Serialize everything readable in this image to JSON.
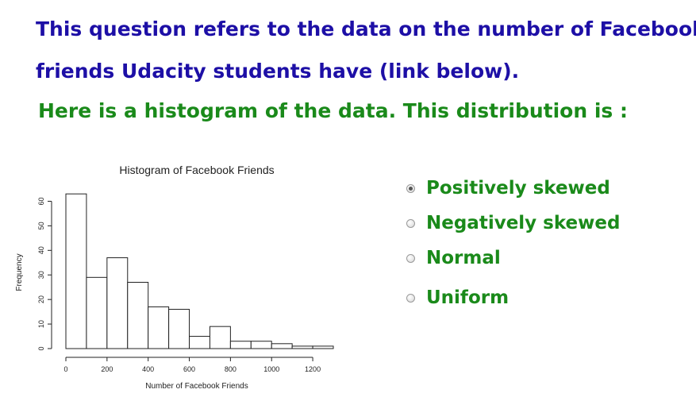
{
  "question": {
    "line1": "This question refers to the data on the number of Facebook",
    "line2": "friends Udacity students have (link below).",
    "line3": "Here is a histogram of the data. This distribution is :"
  },
  "options": [
    {
      "label": "Positively skewed",
      "selected": true
    },
    {
      "label": "Negatively skewed",
      "selected": false
    },
    {
      "label": "Normal",
      "selected": false
    },
    {
      "label": "Uniform",
      "selected": false
    }
  ],
  "colors": {
    "question_text": "#1d0fa6",
    "instruction_text": "#1a8a1a",
    "option_text": "#1a8a1a"
  },
  "chart_data": {
    "type": "bar",
    "title": "Histogram of Facebook Friends",
    "xlabel": "Number of Facebook Friends",
    "ylabel": "Frequency",
    "bin_edges": [
      0,
      100,
      200,
      300,
      400,
      500,
      600,
      700,
      800,
      900,
      1000,
      1100,
      1200,
      1300
    ],
    "values": [
      63,
      29,
      37,
      27,
      17,
      16,
      5,
      9,
      3,
      3,
      2,
      1,
      1
    ],
    "xlim": [
      0,
      1300
    ],
    "ylim": [
      0,
      65
    ],
    "xticks": [
      0,
      200,
      400,
      600,
      800,
      1000,
      1200
    ],
    "yticks": [
      0,
      10,
      20,
      30,
      40,
      50,
      60
    ],
    "grid": false
  }
}
